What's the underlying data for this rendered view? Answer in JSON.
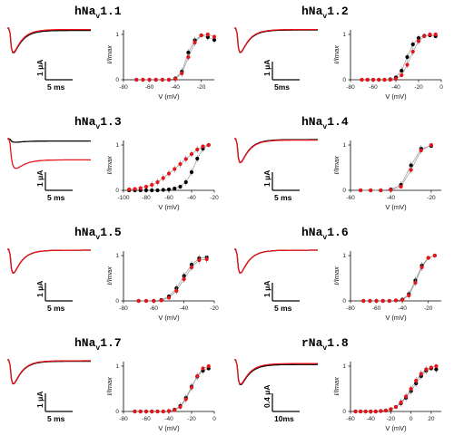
{
  "colors": {
    "wt": "#000000",
    "mut": "#e8141a",
    "fit": "#888888"
  },
  "chart_data": [
    {
      "type": "scatter",
      "title": "hNav1.1",
      "xlabel": "V (mV)",
      "ylabel": "I/Imax",
      "xlim": [
        -80,
        -10
      ],
      "ylim": [
        0,
        1.1
      ],
      "xticks": [
        "-80",
        "-60",
        "-40",
        "-20"
      ],
      "yticks": [
        "0",
        "1"
      ],
      "scale": {
        "current": "1 μA",
        "time": "5 ms"
      },
      "trace": {
        "depth": 0.95,
        "tail_black": 0.05,
        "tail_red": 0.03
      },
      "x": [
        -70,
        -65,
        -60,
        -55,
        -50,
        -45,
        -40,
        -35,
        -30,
        -25,
        -20,
        -15,
        -10
      ],
      "series": [
        {
          "values": [
            0,
            0,
            0,
            0,
            0,
            0,
            0.03,
            0.18,
            0.6,
            0.87,
            0.98,
            0.94,
            0.88
          ]
        },
        {
          "values": [
            0,
            0,
            0,
            0,
            0,
            0,
            0.02,
            0.14,
            0.5,
            0.82,
            0.98,
            1.0,
            0.95
          ]
        }
      ]
    },
    {
      "type": "scatter",
      "title": "hNav1.2",
      "xlabel": "V (mV)",
      "ylabel": "I/Imax",
      "xlim": [
        -80,
        0
      ],
      "ylim": [
        0,
        1.1
      ],
      "xticks": [
        "-80",
        "-60",
        "-40",
        "-20",
        "0"
      ],
      "yticks": [
        "0",
        "1"
      ],
      "scale": {
        "current": "1 μA",
        "time": "5ms"
      },
      "trace": {
        "depth": 0.95,
        "tail_black": 0.04,
        "tail_red": 0.03
      },
      "x": [
        -70,
        -65,
        -60,
        -55,
        -50,
        -45,
        -40,
        -35,
        -30,
        -25,
        -20,
        -15,
        -10,
        -5
      ],
      "series": [
        {
          "values": [
            0,
            0,
            0,
            0,
            0,
            0.01,
            0.05,
            0.2,
            0.5,
            0.78,
            0.92,
            0.97,
            0.98,
            0.96
          ]
        },
        {
          "values": [
            0,
            0,
            0,
            0,
            0,
            0,
            0.02,
            0.1,
            0.33,
            0.62,
            0.85,
            0.96,
            1.0,
            1.0
          ]
        }
      ]
    },
    {
      "type": "scatter",
      "title": "hNav1.3",
      "xlabel": "V (mV)",
      "ylabel": "I/Imax",
      "xlim": [
        -100,
        -20
      ],
      "ylim": [
        0,
        1.1
      ],
      "xticks": [
        "-100",
        "-80",
        "-60",
        "-40",
        "-20"
      ],
      "yticks": [
        "0",
        "1"
      ],
      "scale": {
        "current": "1 μA",
        "time": "5 ms"
      },
      "trace": {
        "depth": 0.6,
        "tail_black": 0.05,
        "tail_red": 0.45,
        "black_depth": 0.08
      },
      "x": [
        -95,
        -90,
        -85,
        -80,
        -75,
        -70,
        -65,
        -60,
        -55,
        -50,
        -45,
        -40,
        -35,
        -30,
        -25
      ],
      "series": [
        {
          "values": [
            0,
            0,
            0,
            0,
            0,
            0,
            0.01,
            0.02,
            0.04,
            0.08,
            0.18,
            0.4,
            0.7,
            0.92,
            1.0
          ]
        },
        {
          "values": [
            0.02,
            0.03,
            0.05,
            0.08,
            0.12,
            0.18,
            0.27,
            0.37,
            0.47,
            0.58,
            0.69,
            0.8,
            0.9,
            0.97,
            1.0
          ]
        }
      ]
    },
    {
      "type": "scatter",
      "title": "hNav1.4",
      "xlabel": "V (mV)",
      "ylabel": "I/Imax",
      "xlim": [
        -60,
        -15
      ],
      "ylim": [
        0,
        1.1
      ],
      "xticks": [
        "-60",
        "-40",
        "-20"
      ],
      "yticks": [
        "0",
        "1"
      ],
      "scale": {
        "current": "1 μA",
        "time": "5 ms"
      },
      "trace": {
        "depth": 0.95,
        "tail_black": 0.02,
        "tail_red": 0.03
      },
      "x": [
        -55,
        -50,
        -45,
        -40,
        -35,
        -30,
        -25,
        -20
      ],
      "series": [
        {
          "values": [
            0,
            0,
            0,
            0.02,
            0.12,
            0.55,
            0.92,
            0.98
          ]
        },
        {
          "values": [
            0,
            0,
            0,
            0.01,
            0.08,
            0.45,
            0.88,
            1.0
          ]
        }
      ]
    },
    {
      "type": "scatter",
      "title": "hNav1.5",
      "xlabel": "V (mV)",
      "ylabel": "I/Imax",
      "xlim": [
        -80,
        -20
      ],
      "ylim": [
        0,
        1.1
      ],
      "xticks": [
        "-80",
        "-60",
        "-40",
        "-20"
      ],
      "yticks": [
        "0",
        "1"
      ],
      "scale": {
        "current": "1 μA",
        "time": "5 ms"
      },
      "trace": {
        "depth": 0.95,
        "tail_black": 0.02,
        "tail_red": 0.02
      },
      "x": [
        -70,
        -65,
        -60,
        -55,
        -50,
        -45,
        -40,
        -35,
        -30,
        -25
      ],
      "series": [
        {
          "values": [
            0,
            0,
            0,
            0.02,
            0.1,
            0.28,
            0.55,
            0.8,
            0.94,
            0.96
          ]
        },
        {
          "values": [
            0,
            0,
            0,
            0.01,
            0.07,
            0.22,
            0.48,
            0.74,
            0.9,
            0.92
          ]
        }
      ]
    },
    {
      "type": "scatter",
      "title": "hNav1.6",
      "xlabel": "V (mV)",
      "ylabel": "I/Imax",
      "xlim": [
        -80,
        -10
      ],
      "ylim": [
        0,
        1.1
      ],
      "xticks": [
        "-80",
        "-60",
        "-40",
        "-20"
      ],
      "yticks": [
        "0",
        "1"
      ],
      "scale": {
        "current": "1 μA",
        "time": "5 ms"
      },
      "trace": {
        "depth": 0.95,
        "tail_black": 0.02,
        "tail_red": 0.02
      },
      "x": [
        -70,
        -65,
        -60,
        -55,
        -50,
        -45,
        -40,
        -35,
        -30,
        -25,
        -20,
        -15
      ],
      "series": [
        {
          "values": [
            0,
            0,
            0,
            0,
            0,
            0.01,
            0.03,
            0.15,
            0.45,
            0.78,
            0.95,
            1.0
          ]
        },
        {
          "values": [
            0,
            0,
            0,
            0,
            0,
            0.01,
            0.02,
            0.12,
            0.4,
            0.74,
            0.95,
            1.0
          ]
        }
      ]
    },
    {
      "type": "scatter",
      "title": "hNav1.7",
      "xlabel": "V (mV)",
      "ylabel": "I/Imax",
      "xlim": [
        -80,
        0
      ],
      "ylim": [
        0,
        1.1
      ],
      "xticks": [
        "-80",
        "-60",
        "-40",
        "-20",
        "0"
      ],
      "yticks": [
        "0",
        "1"
      ],
      "scale": {
        "current": "1 μA",
        "time": "5 ms"
      },
      "trace": {
        "depth": 0.95,
        "tail_black": 0.03,
        "tail_red": 0.02
      },
      "x": [
        -70,
        -65,
        -60,
        -55,
        -50,
        -45,
        -40,
        -35,
        -30,
        -25,
        -20,
        -15,
        -10,
        -5
      ],
      "series": [
        {
          "values": [
            0,
            0,
            0,
            0,
            0,
            0,
            0.01,
            0.04,
            0.12,
            0.3,
            0.55,
            0.77,
            0.9,
            0.95
          ]
        },
        {
          "values": [
            0,
            0,
            0,
            0,
            0,
            0,
            0.01,
            0.03,
            0.1,
            0.27,
            0.53,
            0.78,
            0.95,
            1.0
          ]
        }
      ]
    },
    {
      "type": "scatter",
      "title": "rNav1.8",
      "xlabel": "V (mV)",
      "ylabel": "I/Imax",
      "xlim": [
        -60,
        30
      ],
      "ylim": [
        0,
        1.1
      ],
      "xticks": [
        "-60",
        "-40",
        "-20",
        "0",
        "20"
      ],
      "yticks": [
        "0",
        "1"
      ],
      "scale": {
        "current": "0.4 μA",
        "time": "10ms"
      },
      "trace": {
        "depth": 0.9,
        "tail_black": 0.1,
        "tail_red": 0.08
      },
      "x": [
        -55,
        -50,
        -45,
        -40,
        -35,
        -30,
        -25,
        -20,
        -15,
        -10,
        -5,
        0,
        5,
        10,
        15,
        20,
        25
      ],
      "series": [
        {
          "values": [
            0,
            0,
            0,
            0,
            0,
            0.01,
            0.02,
            0.05,
            0.1,
            0.18,
            0.3,
            0.45,
            0.62,
            0.78,
            0.9,
            0.95,
            0.93
          ]
        },
        {
          "values": [
            0,
            0,
            0,
            0,
            0,
            0.01,
            0.02,
            0.05,
            0.1,
            0.2,
            0.33,
            0.5,
            0.68,
            0.83,
            0.93,
            0.97,
            1.0
          ]
        }
      ]
    }
  ]
}
